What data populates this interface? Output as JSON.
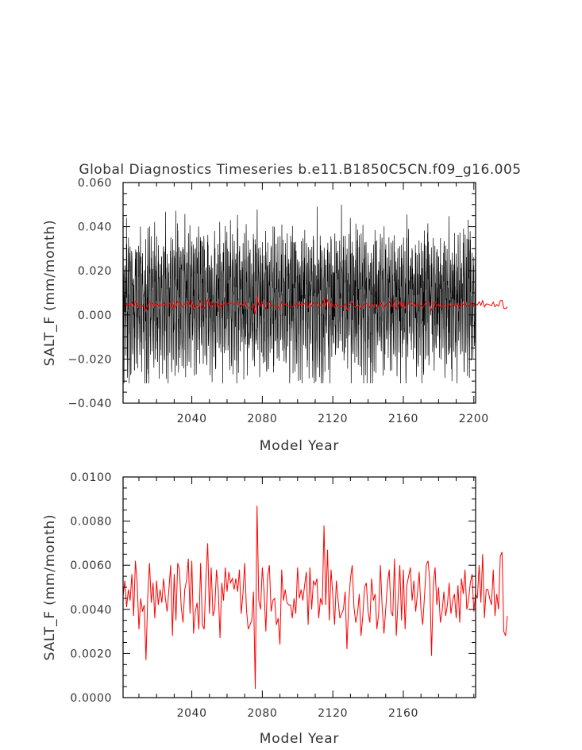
{
  "chart_data": [
    {
      "type": "line",
      "title": "Global Diagnostics Timeseries b.e11.B1850C5CN.f09_g16.005",
      "xlabel": "Model Year",
      "ylabel": "SALT_F (mm/month)",
      "xlim": [
        2001,
        2201
      ],
      "ylim": [
        -0.04,
        0.06
      ],
      "x_ticks": [
        2040,
        2080,
        2120,
        2160,
        2200
      ],
      "y_ticks": [
        "-0.040",
        "-0.020",
        "0.000",
        "0.020",
        "0.040",
        "0.060"
      ],
      "y_tick_values": [
        -0.04,
        -0.02,
        0.0,
        0.02,
        0.04,
        0.06
      ],
      "series": [
        {
          "description": "monthly values",
          "color": "#000000",
          "x_start": 2001,
          "x_end": 2201,
          "typical_range": [
            -0.026,
            0.041
          ],
          "extreme_max": 0.055,
          "extreme_min": -0.031
        },
        {
          "description": "annual mean",
          "color": "#ff0000"
        }
      ]
    },
    {
      "type": "line",
      "title": "",
      "xlabel": "Model Year",
      "ylabel": "SALT_F (mm/month)",
      "xlim": [
        2001,
        2201
      ],
      "ylim": [
        0.0,
        0.01
      ],
      "x_ticks": [
        2040,
        2080,
        2120,
        2160
      ],
      "y_ticks": [
        "0.0000",
        "0.0020",
        "0.0040",
        "0.0060",
        "0.0080",
        "0.0100"
      ],
      "y_tick_values": [
        0.0,
        0.002,
        0.004,
        0.006,
        0.008,
        0.01
      ],
      "series": [
        {
          "description": "annual mean",
          "color": "#ff0000",
          "x_start": 2001,
          "values": [
            0.0046,
            0.0053,
            0.0041,
            0.0049,
            0.0044,
            0.0056,
            0.0037,
            0.0062,
            0.0052,
            0.0031,
            0.0045,
            0.0039,
            0.0042,
            0.0017,
            0.0046,
            0.0061,
            0.0043,
            0.0052,
            0.0036,
            0.0053,
            0.0042,
            0.0049,
            0.0043,
            0.0054,
            0.0045,
            0.0039,
            0.0049,
            0.006,
            0.0028,
            0.0056,
            0.0035,
            0.0061,
            0.0058,
            0.0041,
            0.0034,
            0.0049,
            0.0053,
            0.0063,
            0.0038,
            0.0062,
            0.0029,
            0.0039,
            0.0043,
            0.0031,
            0.0061,
            0.0033,
            0.0031,
            0.0054,
            0.007,
            0.0038,
            0.0059,
            0.0037,
            0.004,
            0.0058,
            0.0049,
            0.0027,
            0.0052,
            0.0044,
            0.0059,
            0.0048,
            0.0057,
            0.0052,
            0.0054,
            0.0049,
            0.0054,
            0.0048,
            0.0058,
            0.0038,
            0.0047,
            0.0061,
            0.004,
            0.0031,
            0.0033,
            0.0035,
            0.0048,
            0.0004,
            0.0087,
            0.0044,
            0.004,
            0.0059,
            0.0048,
            0.003,
            0.0055,
            0.006,
            0.0039,
            0.0044,
            0.0045,
            0.0033,
            0.0036,
            0.0024,
            0.0058,
            0.0044,
            0.0049,
            0.0043,
            0.0042,
            0.0042,
            0.0036,
            0.0045,
            0.0038,
            0.0059,
            0.0045,
            0.0049,
            0.0044,
            0.0051,
            0.0057,
            0.0033,
            0.0059,
            0.004,
            0.0053,
            0.0051,
            0.0054,
            0.0036,
            0.0045,
            0.0042,
            0.0078,
            0.0042,
            0.0067,
            0.0035,
            0.0058,
            0.0046,
            0.0033,
            0.0053,
            0.0044,
            0.0036,
            0.0038,
            0.004,
            0.0048,
            0.0022,
            0.0043,
            0.0054,
            0.006,
            0.0041,
            0.0034,
            0.0038,
            0.0047,
            0.0028,
            0.0037,
            0.005,
            0.0052,
            0.0039,
            0.0034,
            0.0054,
            0.0044,
            0.0047,
            0.0031,
            0.0038,
            0.006,
            0.0041,
            0.0029,
            0.004,
            0.0052,
            0.0058,
            0.0039,
            0.0037,
            0.0063,
            0.0028,
            0.0044,
            0.006,
            0.0035,
            0.0058,
            0.0031,
            0.0051,
            0.0055,
            0.0059,
            0.0044,
            0.0053,
            0.0039,
            0.0047,
            0.0057,
            0.004,
            0.0033,
            0.0046,
            0.006,
            0.0062,
            0.0053,
            0.0019,
            0.0051,
            0.0059,
            0.0042,
            0.005,
            0.0034,
            0.0039,
            0.0048,
            0.0037,
            0.0042,
            0.0052,
            0.0038,
            0.0044,
            0.0047,
            0.0036,
            0.0051,
            0.0034,
            0.0054,
            0.0047,
            0.0058,
            0.004,
            0.0044,
            0.0052,
            0.0056,
            0.0039,
            0.0047,
            0.0045,
            0.006,
            0.0043,
            0.0065,
            0.0036,
            0.0049,
            0.0049,
            0.0045,
            0.0042,
            0.0058,
            0.0037,
            0.0047,
            0.004,
            0.0064,
            0.0066,
            0.003,
            0.0028,
            0.0037
          ]
        }
      ]
    }
  ]
}
